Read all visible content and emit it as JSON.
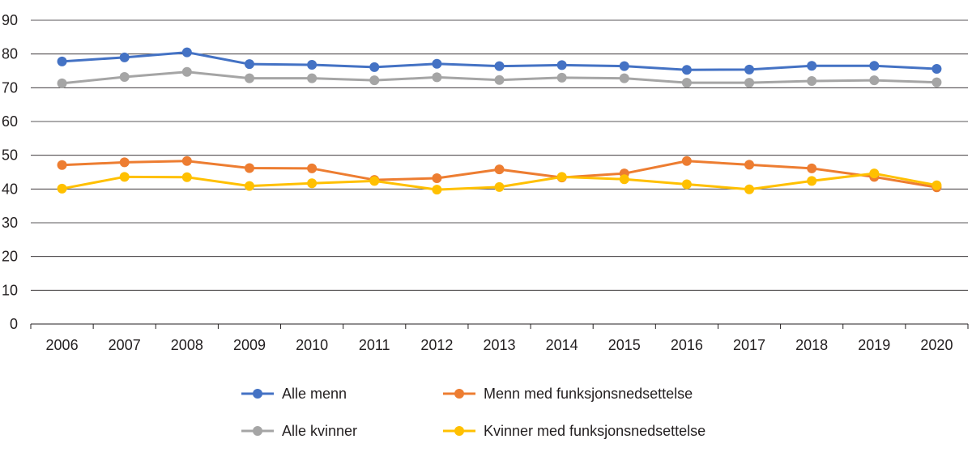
{
  "chart_data": {
    "type": "line",
    "title": "",
    "xlabel": "",
    "ylabel": "",
    "ylim": [
      0,
      90
    ],
    "yticks": [
      "0",
      "10",
      "20",
      "30",
      "40",
      "50",
      "60",
      "70",
      "80",
      "90"
    ],
    "categories": [
      "2006",
      "2007",
      "2008",
      "2009",
      "2010",
      "2011",
      "2012",
      "2013",
      "2014",
      "2015",
      "2016",
      "2017",
      "2018",
      "2019",
      "2020"
    ],
    "grid": "horizontal",
    "legend_position": "bottom",
    "series": [
      {
        "name": "Alle menn",
        "color": "#4472c4",
        "values": [
          77.8,
          79.0,
          80.5,
          77.0,
          76.8,
          76.1,
          77.1,
          76.4,
          76.7,
          76.4,
          75.3,
          75.4,
          76.5,
          76.5,
          75.6
        ]
      },
      {
        "name": "Menn med funksjonsnedsettelse",
        "color": "#ed7d31",
        "values": [
          47.1,
          47.9,
          48.3,
          46.2,
          46.1,
          42.7,
          43.2,
          45.8,
          43.4,
          44.6,
          48.3,
          47.2,
          46.1,
          43.6,
          40.5
        ]
      },
      {
        "name": "Alle kvinner",
        "color": "#a5a5a5",
        "values": [
          71.3,
          73.2,
          74.7,
          72.8,
          72.8,
          72.2,
          73.1,
          72.3,
          73.0,
          72.8,
          71.5,
          71.5,
          72.0,
          72.2,
          71.6
        ]
      },
      {
        "name": "Kvinner med funksjonsnedsettelse",
        "color": "#ffc000",
        "values": [
          40.1,
          43.6,
          43.5,
          40.9,
          41.7,
          42.4,
          39.8,
          40.6,
          43.6,
          42.9,
          41.4,
          39.9,
          42.4,
          44.6,
          41.1
        ]
      }
    ]
  }
}
